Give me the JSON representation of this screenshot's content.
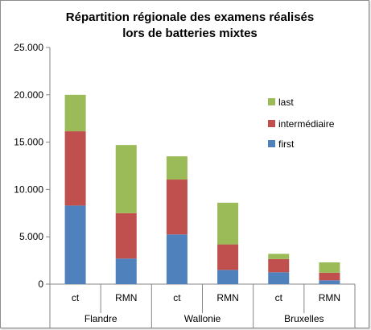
{
  "chart_data": {
    "type": "bar",
    "stacked": true,
    "title": [
      "Répartition régionale des examens réalisés",
      "lors de batteries mixtes"
    ],
    "groups": [
      {
        "label": "Flandre",
        "categories": [
          "ct",
          "RMN"
        ]
      },
      {
        "label": "Wallonie",
        "categories": [
          "ct",
          "RMN"
        ]
      },
      {
        "label": "Bruxelles",
        "categories": [
          "ct",
          "RMN"
        ]
      }
    ],
    "series": [
      {
        "name": "first",
        "color": "#4f81bd",
        "values": [
          8300,
          2700,
          5250,
          1500,
          1250,
          400
        ]
      },
      {
        "name": "intermédiaire",
        "color": "#c0504d",
        "values": [
          7850,
          4800,
          5800,
          2700,
          1400,
          800
        ]
      },
      {
        "name": "last",
        "color": "#9bbb59",
        "values": [
          3850,
          7200,
          2450,
          4400,
          550,
          1100
        ]
      }
    ],
    "yticks": [
      "0",
      "5.000",
      "10.000",
      "15.000",
      "20.000",
      "25.000"
    ],
    "ylim": [
      0,
      25000
    ],
    "grid": false,
    "legend_position": "right",
    "legend_order": [
      "last",
      "intermédiaire",
      "first"
    ]
  }
}
